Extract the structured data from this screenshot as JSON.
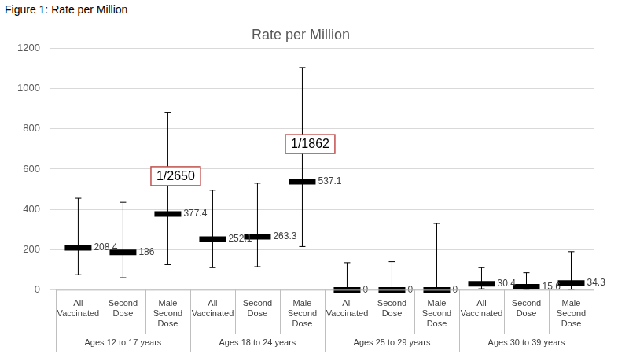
{
  "heading": "Figure 1: Rate per Million",
  "chart_data": {
    "type": "scatter",
    "title": "Rate per Million",
    "categories": [
      "All Vaccinated",
      "Second Dose",
      "Male Second Dose",
      "All Vaccinated",
      "Second Dose",
      "Male Second Dose",
      "All Vaccinated",
      "Second Dose",
      "Male Second Dose",
      "All Vaccinated",
      "Second Dose",
      "Male Second Dose"
    ],
    "category_groups": [
      "Ages 12 to 17 years",
      "Ages 18 to 24 years",
      "Ages 25 to 29 years",
      "Ages 30 to 39 years"
    ],
    "values": [
      208.4,
      186,
      377.4,
      252.1,
      263.3,
      537.1,
      0,
      0,
      0,
      30.4,
      15.6,
      34.3
    ],
    "error_low": [
      75,
      60,
      125,
      110,
      115,
      215,
      0,
      0,
      0,
      5,
      0,
      0
    ],
    "error_high": [
      455,
      435,
      880,
      495,
      530,
      1105,
      135,
      140,
      330,
      110,
      85,
      190
    ],
    "value_notes": [
      null,
      null,
      "1/2650",
      null,
      null,
      "1/1862",
      null,
      null,
      null,
      null,
      null,
      null
    ],
    "color": "#000000",
    "marker": "line",
    "data_labels": true,
    "grid": true,
    "ylim": [
      0,
      1200
    ],
    "yticks": [
      0,
      200,
      400,
      600,
      800,
      1000,
      1200
    ]
  }
}
